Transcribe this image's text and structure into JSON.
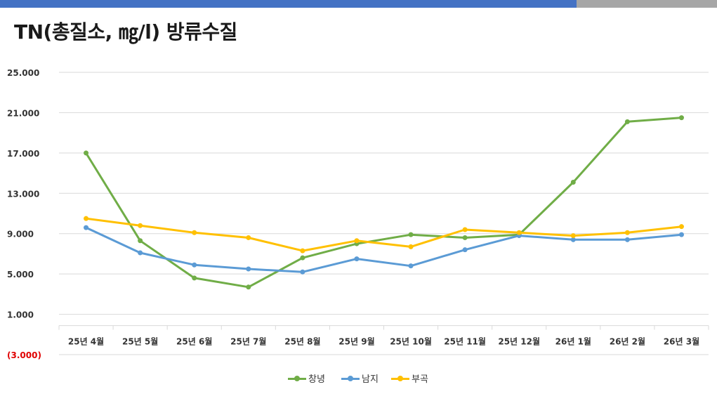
{
  "header": {
    "title": "TN(총질소, ㎎/l) 방류수질",
    "bar_colors": [
      "#4472c4",
      "#a6a6a6"
    ]
  },
  "chart_data": {
    "type": "line",
    "title": "TN(총질소, ㎎/l) 방류수질",
    "categories": [
      "25년 4월",
      "25년 5월",
      "25년 6월",
      "25년 7월",
      "25년 8월",
      "25년 9월",
      "25년 10월",
      "25년 11월",
      "25년 12월",
      "26년 1월",
      "26년 2월",
      "26년 3월"
    ],
    "y_ticks": [
      "25.000",
      "21.000",
      "17.000",
      "13.000",
      "9.000",
      "5.000",
      "1.000",
      "(3.000)"
    ],
    "y_tick_values": [
      25,
      21,
      17,
      13,
      9,
      5,
      1,
      -3
    ],
    "ylim": [
      -3,
      25
    ],
    "grid": true,
    "legend_position": "bottom",
    "series": [
      {
        "name": "창녕",
        "color": "#70ad47",
        "values": [
          17.0,
          8.3,
          4.6,
          3.7,
          6.6,
          8.0,
          8.9,
          8.6,
          8.9,
          14.1,
          20.1,
          20.5
        ]
      },
      {
        "name": "남지",
        "color": "#5b9bd5",
        "values": [
          9.6,
          7.1,
          5.9,
          5.5,
          5.2,
          6.5,
          5.8,
          7.4,
          8.8,
          8.4,
          8.4,
          8.9
        ]
      },
      {
        "name": "부곡",
        "color": "#ffc000",
        "values": [
          10.5,
          9.8,
          9.1,
          8.6,
          7.3,
          8.3,
          7.7,
          9.4,
          9.1,
          8.8,
          9.1,
          9.7
        ]
      }
    ]
  }
}
